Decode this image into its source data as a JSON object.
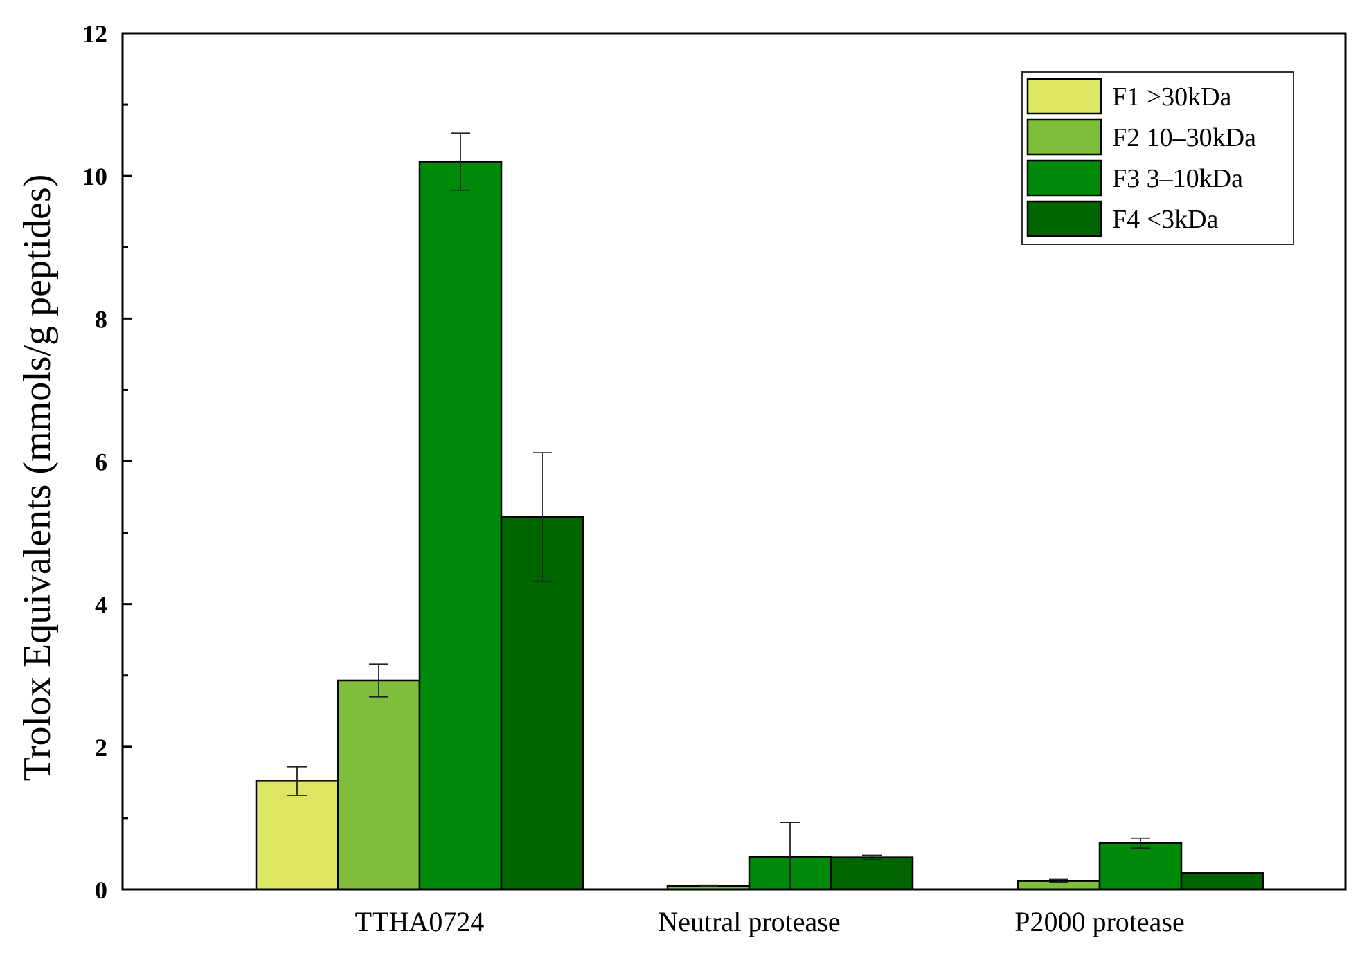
{
  "chart_data": {
    "type": "bar",
    "title": "",
    "xlabel": "",
    "ylabel": "Trolox Equivalents (mmols/g peptides)",
    "ylim": [
      0,
      12
    ],
    "yticks": [
      0,
      2,
      4,
      6,
      8,
      10,
      12
    ],
    "grid": false,
    "legend_position": "top-right",
    "categories": [
      "TTHA0724",
      "Neutral protease",
      "P2000 protease"
    ],
    "series": [
      {
        "name": "F1 >30kDa",
        "color": "#dde663",
        "values": [
          1.52,
          0.0,
          0.0
        ],
        "errors": [
          0.2,
          0.0,
          0.0
        ]
      },
      {
        "name": "F2 10–30kDa",
        "color": "#7fbe3b",
        "values": [
          2.93,
          0.05,
          0.12
        ],
        "errors": [
          0.23,
          0.01,
          0.02
        ]
      },
      {
        "name": "F3 3–10kDa",
        "color": "#008a0a",
        "values": [
          10.2,
          0.46,
          0.65
        ],
        "errors": [
          0.4,
          0.48,
          0.07
        ]
      },
      {
        "name": "F4 <3kDa",
        "color": "#006400",
        "values": [
          5.22,
          0.45,
          0.23
        ],
        "errors": [
          0.9,
          0.03,
          0.0
        ]
      }
    ]
  }
}
